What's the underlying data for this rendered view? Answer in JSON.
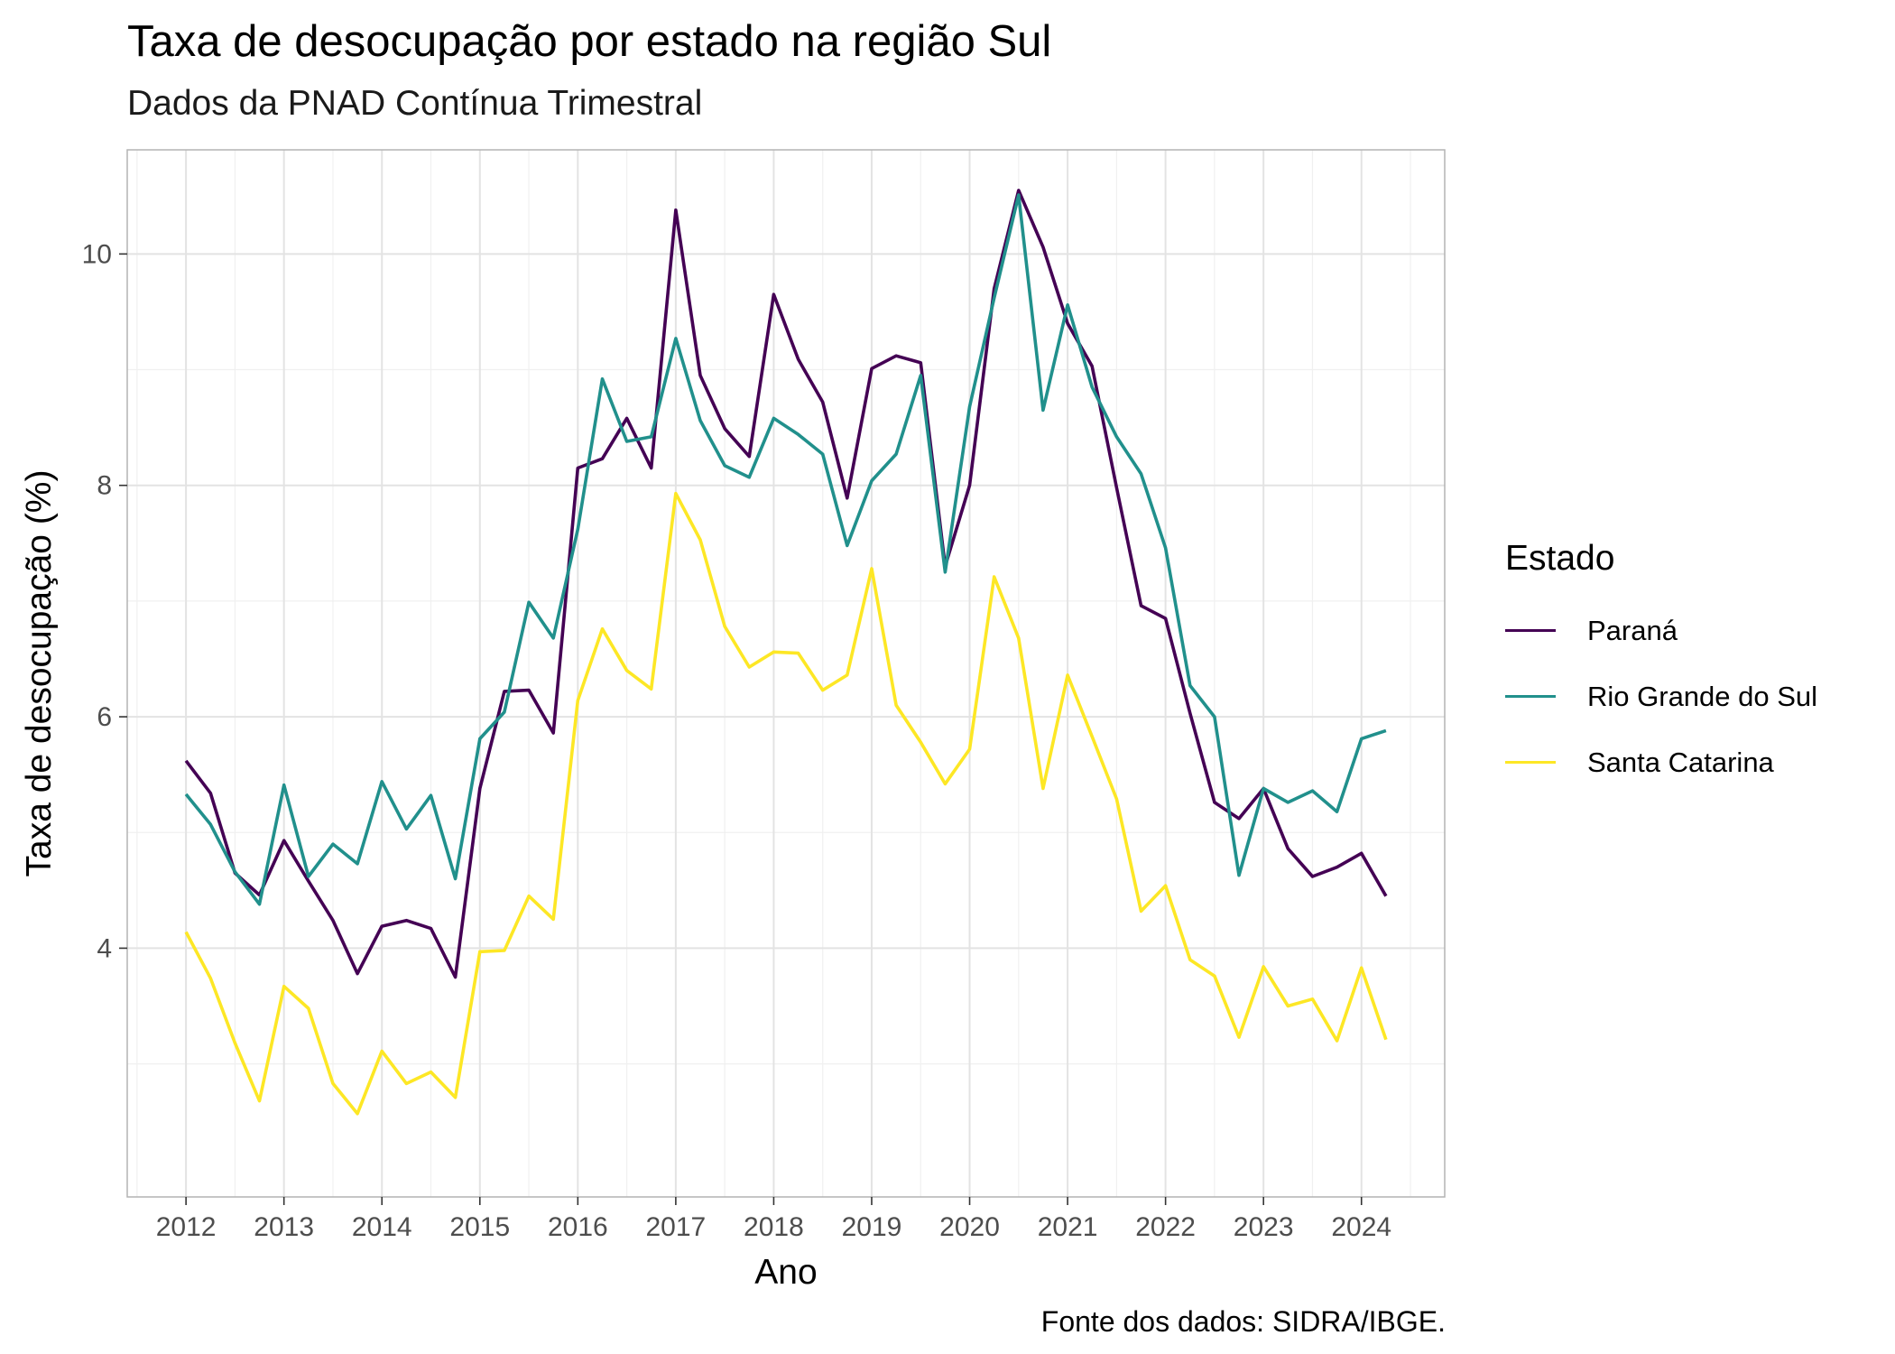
{
  "chart_data": {
    "type": "line",
    "title": "Taxa de desocupação por estado na região Sul",
    "subtitle": "Dados da PNAD Contínua Trimestral",
    "xlabel": "Ano",
    "ylabel": "Taxa de desocupação (%)",
    "caption": "Fonte dos dados: SIDRA/IBGE.",
    "legend_title": "Estado",
    "legend_position": "right",
    "grid": true,
    "xlim": [
      2011.4,
      2024.85
    ],
    "ylim": [
      1.85,
      10.9
    ],
    "x_ticks": [
      2012,
      2013,
      2014,
      2015,
      2016,
      2017,
      2018,
      2019,
      2020,
      2021,
      2022,
      2023,
      2024
    ],
    "y_ticks": [
      4,
      6,
      8,
      10
    ],
    "x_start": 2012,
    "x_step": 0.25,
    "series": [
      {
        "name": "Paraná",
        "color": "#440154",
        "values": [
          5.62,
          5.34,
          4.65,
          4.46,
          4.93,
          4.58,
          4.24,
          3.78,
          4.19,
          4.24,
          4.17,
          3.75,
          5.38,
          6.22,
          6.23,
          5.86,
          8.15,
          8.23,
          8.58,
          8.15,
          10.38,
          8.95,
          8.49,
          8.25,
          9.65,
          9.09,
          8.72,
          7.89,
          9.01,
          9.12,
          9.06,
          7.3,
          8.0,
          9.7,
          10.55,
          10.06,
          9.4,
          9.03,
          7.98,
          6.96,
          6.85,
          6.03,
          5.26,
          5.12,
          5.38,
          4.86,
          4.62,
          4.7,
          4.82,
          4.45
        ]
      },
      {
        "name": "Rio Grande do Sul",
        "color": "#21908C",
        "values": [
          5.33,
          5.07,
          4.66,
          4.38,
          5.41,
          4.62,
          4.9,
          4.73,
          5.44,
          5.03,
          5.32,
          4.6,
          5.81,
          6.04,
          6.99,
          6.68,
          7.62,
          8.92,
          8.38,
          8.42,
          9.27,
          8.56,
          8.17,
          8.07,
          8.58,
          8.44,
          8.27,
          7.48,
          8.04,
          8.27,
          8.95,
          7.25,
          8.68,
          9.62,
          10.51,
          8.65,
          9.56,
          8.85,
          8.42,
          8.1,
          7.46,
          6.27,
          6.0,
          4.63,
          5.38,
          5.26,
          5.36,
          5.18,
          5.81,
          5.88
        ]
      },
      {
        "name": "Santa Catarina",
        "color": "#FDE725",
        "values": [
          4.14,
          3.74,
          3.18,
          2.68,
          3.67,
          3.48,
          2.83,
          2.57,
          3.11,
          2.83,
          2.93,
          2.71,
          3.97,
          3.98,
          4.45,
          4.25,
          6.14,
          6.76,
          6.4,
          6.24,
          7.93,
          7.53,
          6.78,
          6.43,
          6.56,
          6.55,
          6.23,
          6.36,
          7.28,
          6.1,
          5.78,
          5.42,
          5.72,
          7.21,
          6.68,
          5.38,
          6.36,
          5.83,
          5.29,
          4.32,
          4.54,
          3.9,
          3.76,
          3.23,
          3.84,
          3.5,
          3.56,
          3.2,
          3.83,
          3.21
        ]
      }
    ]
  }
}
